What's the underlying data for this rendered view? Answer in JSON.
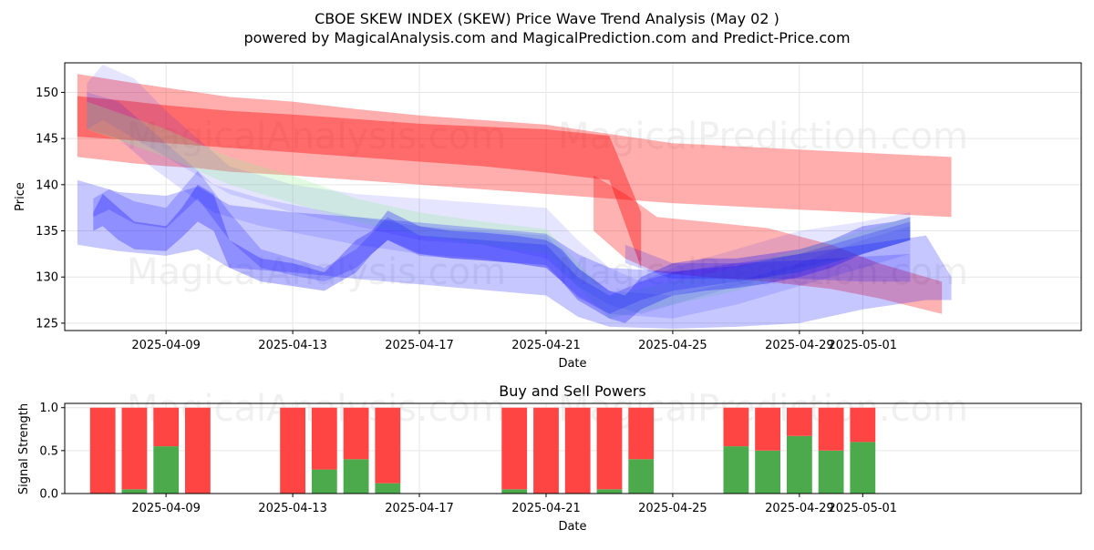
{
  "title": "CBOE SKEW INDEX (SKEW) Price Wave Trend Analysis (May 02 )",
  "subtitle": "powered by MagicalAnalysis.com and MagicalPrediction.com and Predict-Price.com",
  "watermarks": [
    "MagicalAnalysis.com",
    "MagicalPrediction.com"
  ],
  "colors": {
    "red": "#ff0000",
    "blue": "#0000ff",
    "green": "#008000",
    "light_green": "#90ee90",
    "bar_red": "#ff4444",
    "bar_green": "#4caa4c"
  },
  "chart_data": [
    {
      "type": "area",
      "title": "",
      "xlabel": "Date",
      "ylabel": "Price",
      "ylim": [
        124.2,
        153.2
      ],
      "xlim": [
        -3.2,
        28.9
      ],
      "yticks": [
        125,
        130,
        135,
        140,
        145,
        150
      ],
      "xticks": [
        {
          "pos": 0,
          "label": "2025-04-09"
        },
        {
          "pos": 4,
          "label": "2025-04-13"
        },
        {
          "pos": 8,
          "label": "2025-04-17"
        },
        {
          "pos": 12,
          "label": "2025-04-21"
        },
        {
          "pos": 16,
          "label": "2025-04-25"
        },
        {
          "pos": 20,
          "label": "2025-04-29"
        },
        {
          "pos": 22,
          "label": "2025-05-01"
        }
      ],
      "grid": true,
      "series": [
        {
          "name": "red band outer",
          "color": "red",
          "opacity": 0.32,
          "x": [
            -2.8,
            -1,
            0,
            1,
            2,
            4,
            6,
            8,
            10,
            12,
            14,
            16,
            20,
            24.8
          ],
          "upper": [
            152,
            151,
            150.5,
            150,
            149.5,
            149,
            148.2,
            147.5,
            147,
            146.5,
            145.5,
            144.5,
            143.8,
            143
          ],
          "lower": [
            143,
            142.3,
            142,
            141.8,
            141.4,
            141,
            140.5,
            140,
            139.5,
            139,
            138.5,
            138,
            137.3,
            136.5
          ]
        },
        {
          "name": "red band inner",
          "color": "red",
          "opacity": 0.38,
          "x": [
            -2.8,
            -1,
            0,
            2,
            4,
            6,
            8,
            10,
            12,
            14,
            15
          ],
          "upper": [
            149.6,
            149,
            148.6,
            148,
            147.6,
            147.1,
            146.6,
            146.3,
            146,
            145.3,
            137
          ],
          "lower": [
            145.2,
            144.8,
            144.5,
            144,
            143.5,
            143,
            142.5,
            142,
            141.3,
            140.5,
            131
          ]
        },
        {
          "name": "red band declining",
          "color": "red",
          "opacity": 0.3,
          "x": [
            13.5,
            14.5,
            15.5,
            17,
            19,
            21,
            22.5,
            24.5
          ],
          "upper": [
            141,
            139,
            136.5,
            136,
            135.3,
            133.5,
            131.5,
            129.5
          ],
          "lower": [
            135,
            132,
            130.5,
            130,
            129.5,
            128.7,
            127.7,
            126
          ]
        },
        {
          "name": "light band upper",
          "color": "blue",
          "opacity": 0.1,
          "x": [
            -2.5,
            -2,
            -1,
            0,
            1,
            2,
            4,
            6,
            8,
            10,
            12,
            13,
            14,
            15,
            16,
            18,
            20,
            22,
            23.5
          ],
          "upper": [
            151,
            153,
            151.5,
            148,
            145,
            142,
            140,
            139,
            138.5,
            138,
            137.5,
            134,
            131,
            129.5,
            131,
            133,
            135,
            136,
            137
          ],
          "lower": [
            146,
            147,
            145,
            143,
            141,
            139,
            137,
            135.5,
            134,
            133.5,
            132,
            129,
            127,
            126,
            127,
            129,
            131,
            132.5,
            134
          ]
        },
        {
          "name": "light band middle",
          "color": "blue",
          "opacity": 0.12,
          "x": [
            -2.5,
            -1.5,
            -0.5,
            0.5,
            1.5,
            3,
            4.5,
            6,
            8,
            10,
            12,
            13,
            14,
            16,
            18,
            20,
            22,
            23.5
          ],
          "upper": [
            150,
            149,
            146,
            143,
            140,
            138.5,
            137.5,
            136.5,
            135.5,
            135,
            134.5,
            131,
            128.5,
            128,
            129.5,
            131.5,
            134,
            135.5
          ],
          "lower": [
            146,
            145,
            142,
            139.5,
            137,
            135.5,
            134.5,
            133.5,
            132.5,
            132,
            131,
            128,
            126,
            125.5,
            127,
            129,
            131,
            132.5
          ]
        },
        {
          "name": "green tint band",
          "color": "light_green",
          "opacity": 0.25,
          "x": [
            -2.5,
            0,
            2,
            4,
            6,
            8,
            10,
            12,
            14,
            16,
            18,
            20,
            22,
            23.5
          ],
          "upper": [
            149,
            146,
            143,
            141,
            138.5,
            137,
            136,
            135.2,
            128,
            129.5,
            131,
            133,
            135,
            136.5
          ],
          "lower": [
            146,
            143,
            140,
            138,
            136,
            134.5,
            133.5,
            132.5,
            125.5,
            127,
            128.5,
            130.5,
            132.5,
            134
          ]
        },
        {
          "name": "blue wave outer",
          "color": "blue",
          "opacity": 0.22,
          "x": [
            -2.8,
            -1.5,
            0,
            1,
            2,
            4,
            6,
            8,
            10,
            12,
            13,
            14,
            16,
            18,
            20,
            22,
            24,
            24.8
          ],
          "upper": [
            140.5,
            139.2,
            138.8,
            139.8,
            137.8,
            137,
            136.5,
            135.9,
            135.3,
            134.7,
            132.5,
            131,
            130.6,
            131.2,
            132.5,
            133.5,
            134.5,
            130
          ],
          "lower": [
            133.5,
            132.8,
            132.3,
            133,
            131,
            130.5,
            129.8,
            129.2,
            128.6,
            128,
            125.7,
            124.6,
            124.4,
            124.6,
            125,
            126.5,
            127.5,
            127.5
          ]
        },
        {
          "name": "blue wave core",
          "color": "blue",
          "opacity": 0.28,
          "x": [
            -2.3,
            -2,
            -1.5,
            -1,
            0,
            0.5,
            1,
            1.5,
            2,
            3,
            4,
            5,
            6,
            6.5,
            7,
            8,
            9,
            10,
            11,
            12,
            12.5,
            13,
            14,
            14.5,
            15,
            16,
            17,
            18,
            19,
            20,
            21,
            22,
            23,
            23.5
          ],
          "upper": [
            137,
            139,
            137.5,
            136,
            135.5,
            137.5,
            140,
            139,
            134,
            132,
            131.5,
            130.5,
            134,
            135,
            137.2,
            135.5,
            135,
            134.8,
            134.5,
            134,
            133,
            131,
            128.5,
            128,
            130,
            131.5,
            132,
            132,
            132.5,
            133,
            134,
            135.5,
            136,
            136.5
          ],
          "lower": [
            135,
            135.5,
            134,
            133,
            132.8,
            134.3,
            136,
            135,
            131,
            129.5,
            129,
            128.5,
            130.5,
            132.5,
            134,
            132.5,
            132,
            131.8,
            131.5,
            131,
            129.5,
            127.5,
            125.5,
            125,
            126.5,
            128,
            128.5,
            128.8,
            129.3,
            130,
            131,
            132.5,
            133.5,
            134
          ]
        },
        {
          "name": "blue wave thin",
          "color": "blue",
          "opacity": 0.2,
          "x": [
            -2.3,
            -1.8,
            -1,
            0,
            1,
            2,
            3,
            4,
            5,
            6,
            7,
            8,
            10,
            12,
            13,
            14,
            15,
            16,
            18,
            20,
            22,
            23.5
          ],
          "upper": [
            138.5,
            139.5,
            138.2,
            137.5,
            141.5,
            137,
            133,
            132,
            131,
            133,
            136.5,
            134.5,
            134,
            133.5,
            130,
            128,
            129.5,
            130.5,
            131.5,
            132.5,
            134.5,
            136
          ],
          "lower": [
            136.5,
            137.3,
            135.8,
            135.3,
            138.5,
            134,
            131,
            130.2,
            129.5,
            131,
            134,
            132.3,
            131.8,
            131.3,
            127.8,
            126,
            127.5,
            128.5,
            129.5,
            130.5,
            132.5,
            134
          ]
        },
        {
          "name": "purple tail band",
          "color": "blue",
          "opacity": 0.18,
          "x": [
            14.5,
            16,
            18,
            20,
            22,
            23.5
          ],
          "upper": [
            133.5,
            131.5,
            131.5,
            131.8,
            132.2,
            132.5
          ],
          "lower": [
            131.5,
            129.8,
            129.8,
            129.8,
            129.5,
            129.5
          ]
        }
      ]
    },
    {
      "type": "bar",
      "title": "Buy and Sell Powers",
      "xlabel": "Date",
      "ylabel": "Signal Strength",
      "ylim": [
        0,
        1.05
      ],
      "xlim": [
        -3.2,
        28.9
      ],
      "yticks": [
        {
          "value": 0,
          "label": "0.0"
        },
        {
          "value": 0.5,
          "label": "0.5"
        },
        {
          "value": 1,
          "label": "1.0"
        }
      ],
      "xticks": [
        {
          "pos": 0,
          "label": "2025-04-09"
        },
        {
          "pos": 4,
          "label": "2025-04-13"
        },
        {
          "pos": 8,
          "label": "2025-04-17"
        },
        {
          "pos": 12,
          "label": "2025-04-21"
        },
        {
          "pos": 16,
          "label": "2025-04-25"
        },
        {
          "pos": 20,
          "label": "2025-04-29"
        },
        {
          "pos": 22,
          "label": "2025-05-01"
        }
      ],
      "grid": true,
      "x": [
        -2,
        -1,
        0,
        1,
        4,
        5,
        6,
        7,
        11,
        12,
        13,
        14,
        15,
        18,
        19,
        20,
        21,
        22
      ],
      "series": [
        {
          "name": "Buy",
          "color": "bar_green",
          "values": [
            0,
            0.05,
            0.55,
            0,
            0,
            0.28,
            0.4,
            0.12,
            0.05,
            0,
            0,
            0.05,
            0.4,
            0.55,
            0.5,
            0.67,
            0.5,
            0.6
          ]
        },
        {
          "name": "Sell",
          "color": "bar_red",
          "values": [
            1,
            0.95,
            0.45,
            1,
            1,
            0.72,
            0.6,
            0.88,
            0.95,
            1,
            1,
            0.95,
            0.6,
            0.45,
            0.5,
            0.33,
            0.5,
            0.4
          ]
        }
      ]
    }
  ]
}
